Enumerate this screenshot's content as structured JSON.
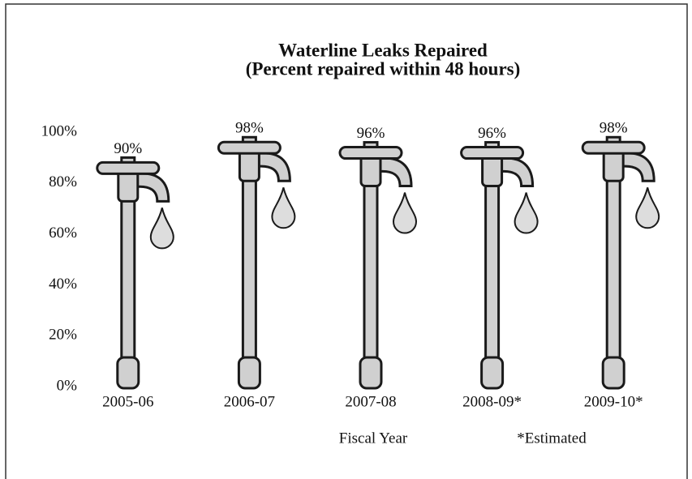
{
  "chart_data": {
    "type": "pictograph-bar",
    "title": "Waterline Leaks Repaired",
    "subtitle": "(Percent repaired within 48 hours)",
    "categories": [
      "2005-06",
      "2006-07",
      "2007-08",
      "2008-09*",
      "2009-10*"
    ],
    "values": [
      90,
      98,
      96,
      96,
      98
    ],
    "value_labels": [
      "90%",
      "98%",
      "96%",
      "96%",
      "98%"
    ],
    "color": "#d0d0d0",
    "ylim": [
      0,
      100
    ],
    "yticks": [
      {
        "value": 0,
        "label": "0%"
      },
      {
        "value": 20,
        "label": "20%"
      },
      {
        "value": 40,
        "label": "40%"
      },
      {
        "value": 60,
        "label": "60%"
      },
      {
        "value": 80,
        "label": "80%"
      },
      {
        "value": 100,
        "label": "100%"
      }
    ],
    "xlabel": "Fiscal Year",
    "annotation": "*Estimated"
  }
}
